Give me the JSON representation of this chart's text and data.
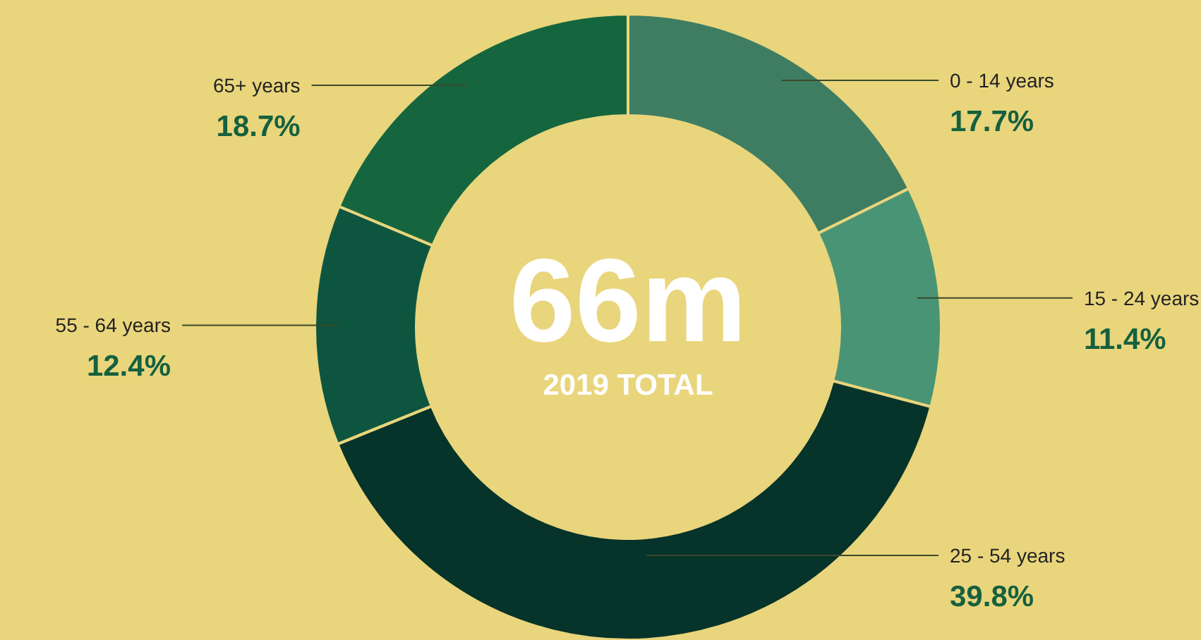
{
  "chart_data": {
    "type": "donut",
    "title": "66m",
    "subtitle": "2019 TOTAL",
    "categories": [
      "0 - 14 years",
      "15 - 24 years",
      "25 - 54 years",
      "55 - 64 years",
      "65+ years"
    ],
    "values": [
      17.7,
      11.4,
      39.8,
      12.4,
      18.7
    ],
    "colors": [
      "#3f7d62",
      "#4a9476",
      "#06332a",
      "#0e5540",
      "#15663f"
    ],
    "value_labels": [
      "17.7%",
      "11.4%",
      "39.8%",
      "12.4%",
      "18.7%"
    ]
  }
}
